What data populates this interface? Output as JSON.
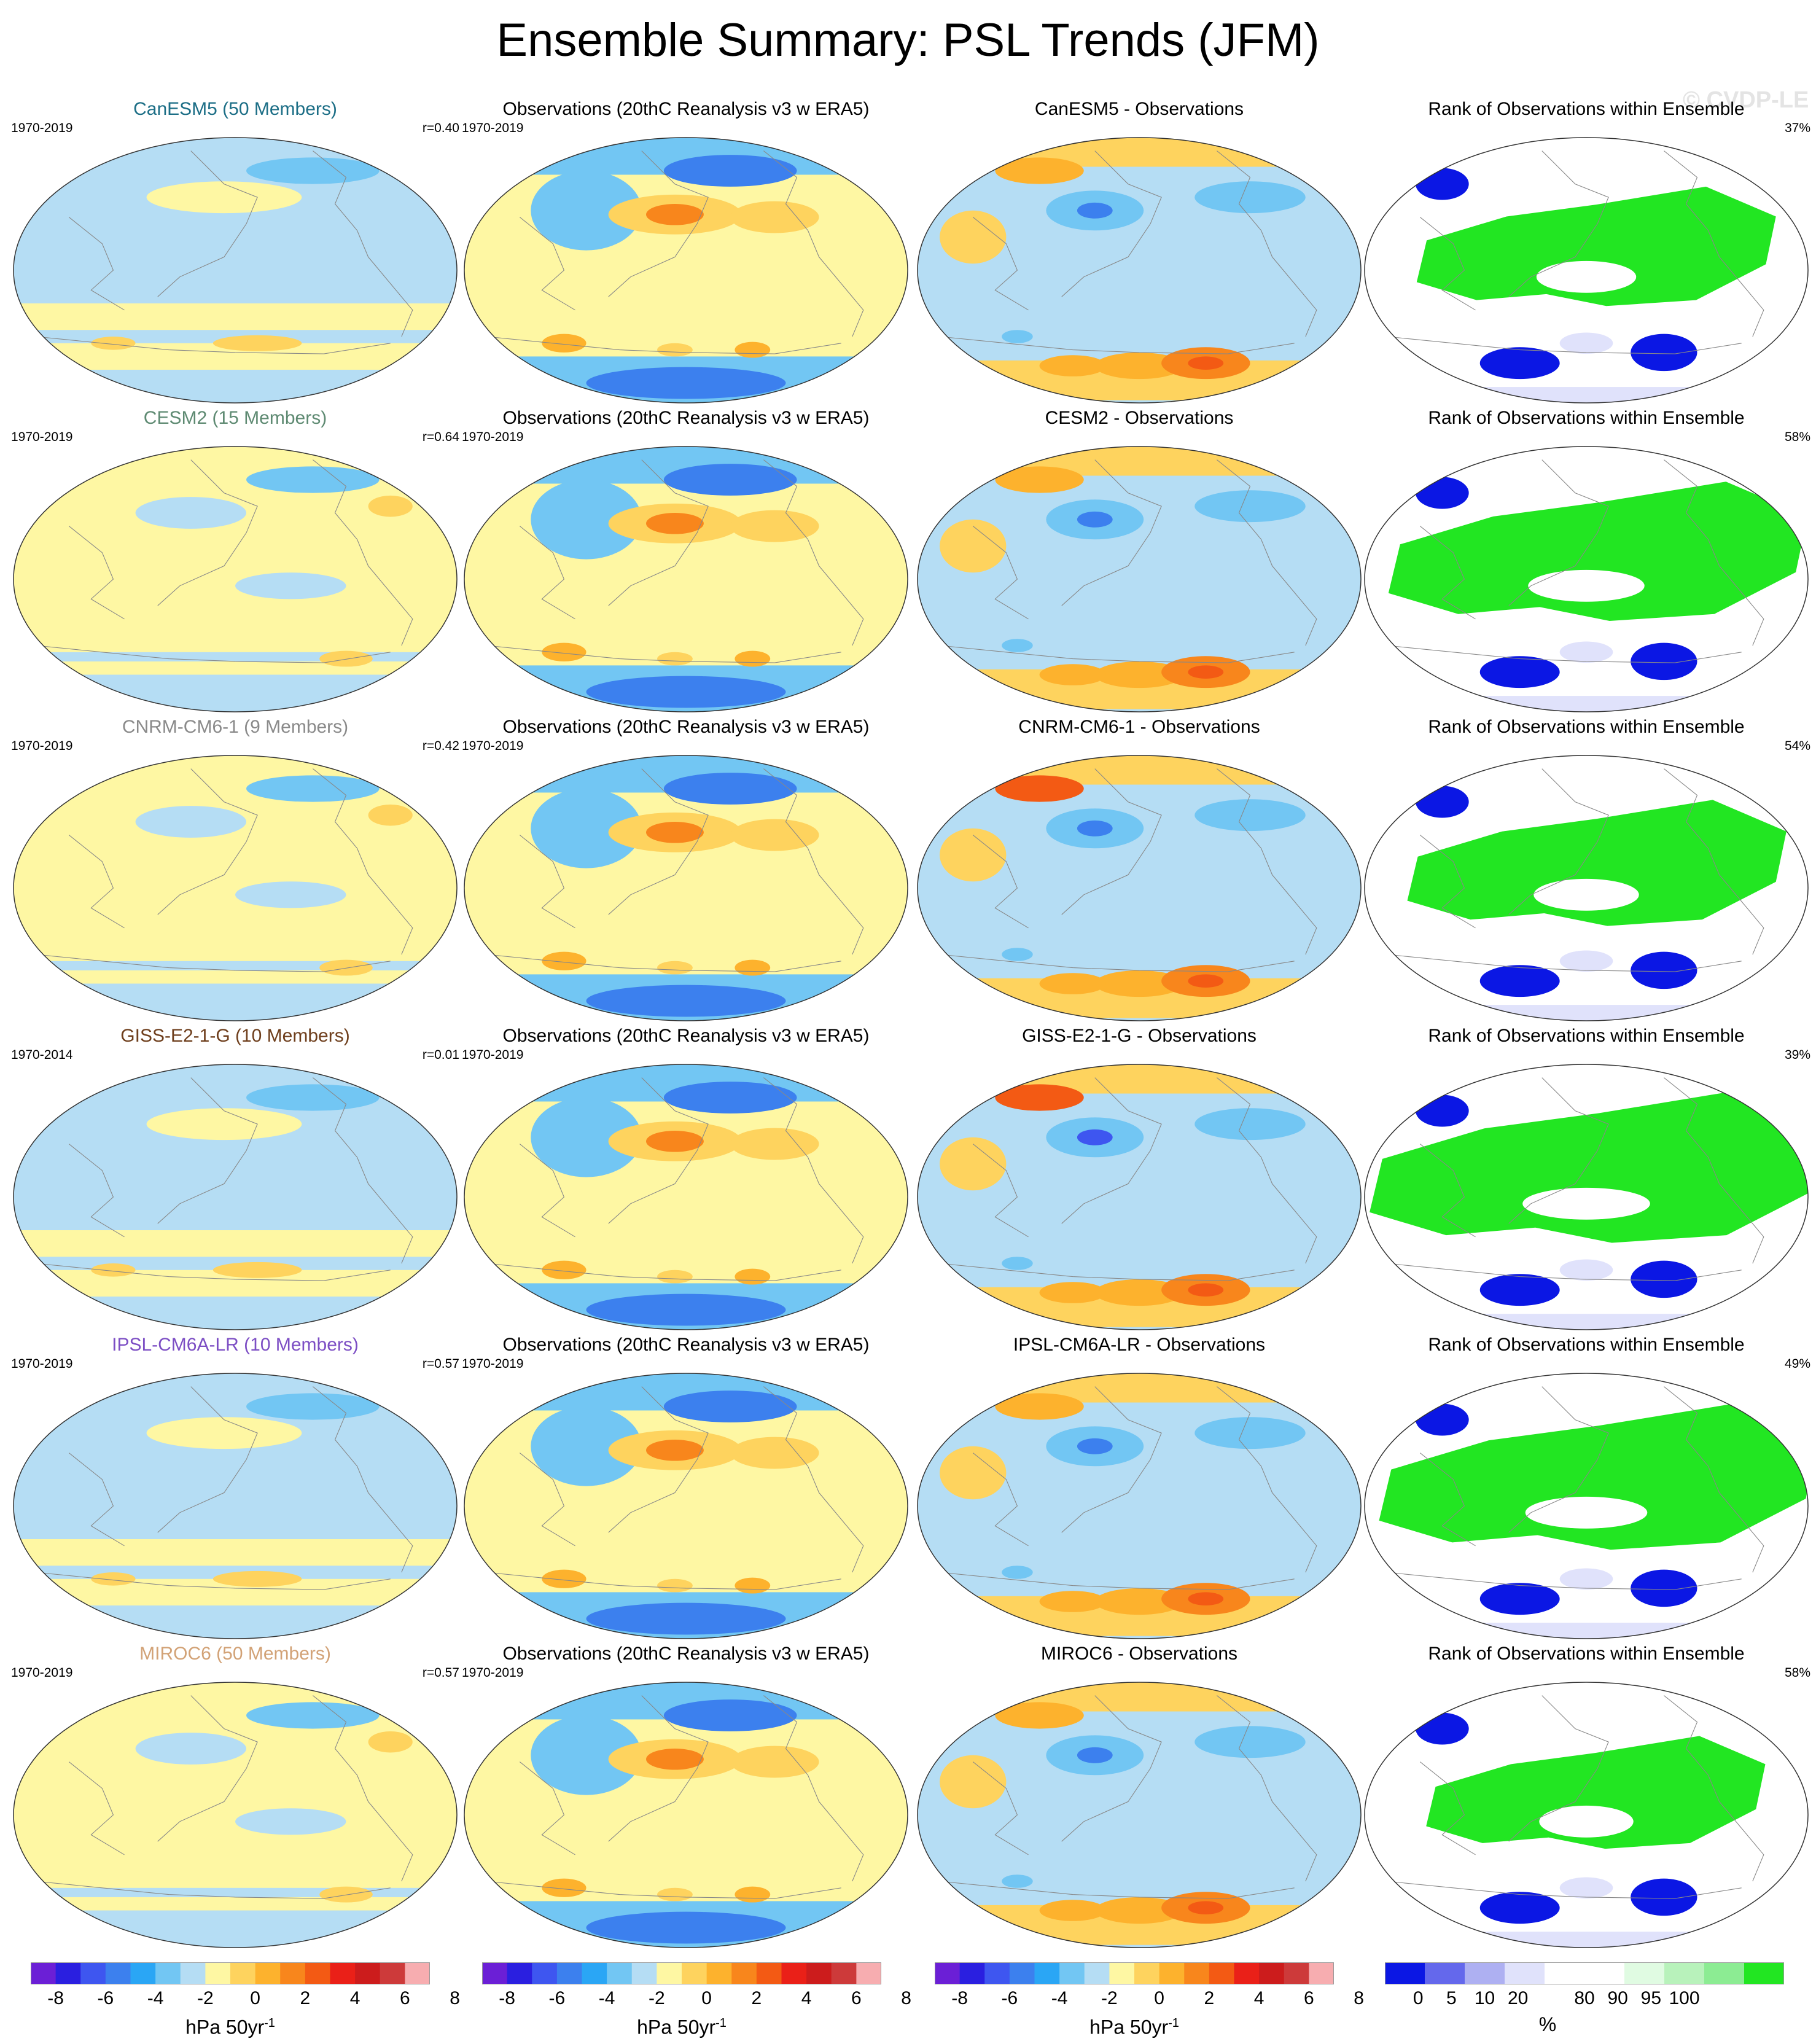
{
  "title": "Ensemble Summary: PSL Trends (JFM)",
  "watermark": "© CVDP-LE",
  "colors": {
    "psl_scale": [
      "#6b1fd6",
      "#2a1fe0",
      "#3e56f0",
      "#3c80ee",
      "#2aa6f5",
      "#72c6f3",
      "#b5ddf4",
      "#fef7a3",
      "#fed35e",
      "#fdb22d",
      "#f8861c",
      "#f35a14",
      "#ea2018",
      "#cc1c1c",
      "#cd3a3a",
      "#f7adb0"
    ],
    "rank_scale": [
      "#0b17e4",
      "#6468ec",
      "#aeb0f2",
      "#e0e2fb",
      "#ffffff",
      "#ffffff",
      "#e0fbe2",
      "#b8f2bb",
      "#8cec93",
      "#22e622"
    ]
  },
  "rows": [
    {
      "model": {
        "title": "CanESM5 (50 Members)",
        "color": "#1c6e86",
        "years": "1970-2019",
        "r": "r=0.40"
      },
      "obs": {
        "title": "Observations (20thC Reanalysis v3 w ERA5)",
        "years": "1970-2019"
      },
      "diff": {
        "title": "CanESM5 - Observations"
      },
      "rank": {
        "title": "Rank of Observations within Ensemble",
        "pct": "37%"
      }
    },
    {
      "model": {
        "title": "CESM2 (15 Members)",
        "color": "#5e8a72",
        "years": "1970-2019",
        "r": "r=0.64"
      },
      "obs": {
        "title": "Observations (20thC Reanalysis v3 w ERA5)",
        "years": "1970-2019"
      },
      "diff": {
        "title": "CESM2 - Observations"
      },
      "rank": {
        "title": "Rank of Observations within Ensemble",
        "pct": "58%"
      }
    },
    {
      "model": {
        "title": "CNRM-CM6-1 (9 Members)",
        "color": "#8a8a8a",
        "years": "1970-2019",
        "r": "r=0.42"
      },
      "obs": {
        "title": "Observations (20thC Reanalysis v3 w ERA5)",
        "years": "1970-2019"
      },
      "diff": {
        "title": "CNRM-CM6-1 - Observations"
      },
      "rank": {
        "title": "Rank of Observations within Ensemble",
        "pct": "54%"
      }
    },
    {
      "model": {
        "title": "GISS-E2-1-G (10 Members)",
        "color": "#6e3e1c",
        "years": "1970-2014",
        "r": "r=0.01"
      },
      "obs": {
        "title": "Observations (20thC Reanalysis v3 w ERA5)",
        "years": "1970-2019"
      },
      "diff": {
        "title": "GISS-E2-1-G - Observations"
      },
      "rank": {
        "title": "Rank of Observations within Ensemble",
        "pct": "39%"
      }
    },
    {
      "model": {
        "title": "IPSL-CM6A-LR (10 Members)",
        "color": "#7c4ec4",
        "years": "1970-2019",
        "r": "r=0.57"
      },
      "obs": {
        "title": "Observations (20thC Reanalysis v3 w ERA5)",
        "years": "1970-2019"
      },
      "diff": {
        "title": "IPSL-CM6A-LR - Observations"
      },
      "rank": {
        "title": "Rank of Observations within Ensemble",
        "pct": "49%"
      }
    },
    {
      "model": {
        "title": "MIROC6 (50 Members)",
        "color": "#d2a276",
        "years": "1970-2019",
        "r": "r=0.57"
      },
      "obs": {
        "title": "Observations (20thC Reanalysis v3 w ERA5)",
        "years": "1970-2019"
      },
      "diff": {
        "title": "MIROC6 - Observations"
      },
      "rank": {
        "title": "Rank of Observations within Ensemble",
        "pct": "58%"
      }
    }
  ],
  "colorbars": [
    {
      "ticks": [
        "-8",
        "-6",
        "-4",
        "-2",
        "0",
        "2",
        "4",
        "6",
        "8"
      ],
      "label_main": "hPa 50yr",
      "label_sup": "-1"
    },
    {
      "ticks": [
        "-8",
        "-6",
        "-4",
        "-2",
        "0",
        "2",
        "4",
        "6",
        "8"
      ],
      "label_main": "hPa 50yr",
      "label_sup": "-1"
    },
    {
      "ticks": [
        "-8",
        "-6",
        "-4",
        "-2",
        "0",
        "2",
        "4",
        "6",
        "8"
      ],
      "label_main": "hPa 50yr",
      "label_sup": "-1"
    },
    {
      "ticks": [
        "0",
        "5",
        "10",
        "20",
        "80",
        "90",
        "95",
        "100"
      ],
      "label_main": "%",
      "label_sup": ""
    }
  ]
}
